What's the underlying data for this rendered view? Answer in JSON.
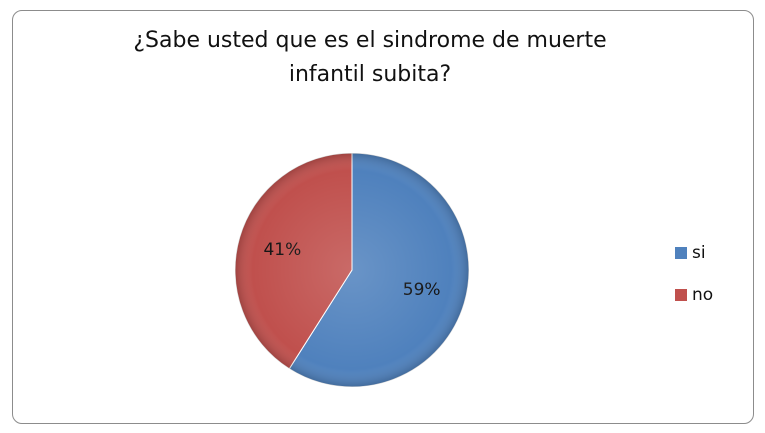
{
  "chart_data": {
    "type": "pie",
    "title": "¿Sabe usted que es el sindrome de muerte infantil subita?",
    "categories": [
      "si",
      "no"
    ],
    "values": [
      59,
      41
    ],
    "value_labels": [
      "59%",
      "41%"
    ],
    "colors": [
      "#4f81bd",
      "#c0504d"
    ],
    "legend": "right"
  }
}
